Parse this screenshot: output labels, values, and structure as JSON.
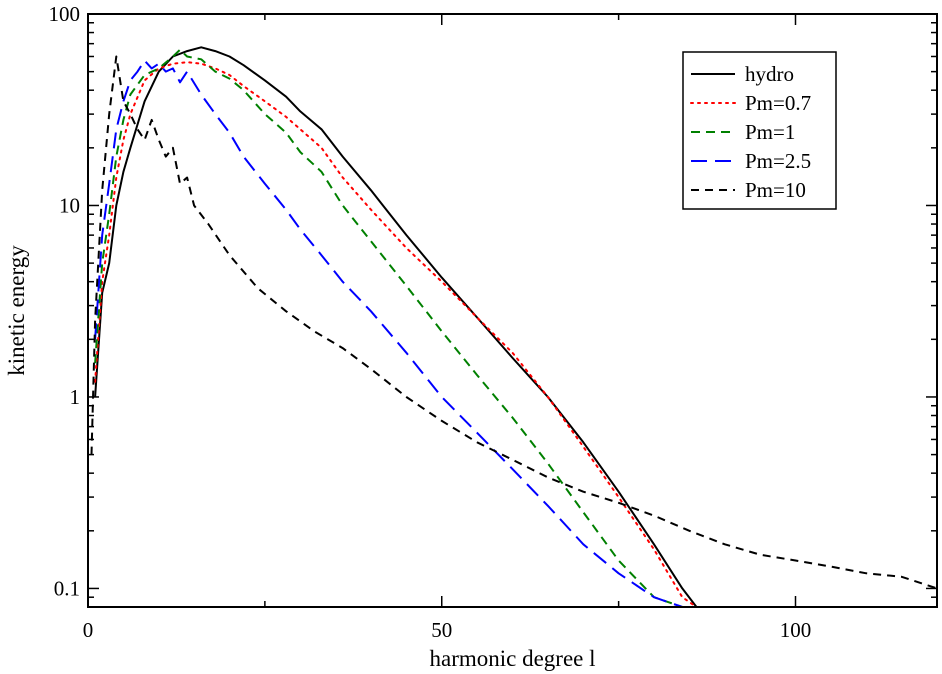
{
  "chart_data": {
    "type": "line",
    "title": "",
    "xlabel": "harmonic degree l",
    "ylabel": "kinetic energy",
    "xlim": [
      0,
      120
    ],
    "ylim": [
      0.08,
      100
    ],
    "yscale": "log",
    "xticks": [
      0,
      50,
      100
    ],
    "xtick_labels": [
      "0",
      "50",
      "100"
    ],
    "yticks": [
      0.1,
      1,
      10,
      100
    ],
    "ytick_labels": [
      "0.1",
      "1",
      "10",
      "100"
    ],
    "grid": false,
    "legend_position": "top-right",
    "series": [
      {
        "name": "hydro",
        "color": "#000000",
        "dash": "solid",
        "x": [
          1,
          2,
          3,
          4,
          5,
          6,
          8,
          10,
          12,
          14,
          16,
          18,
          20,
          22,
          25,
          28,
          30,
          33,
          36,
          40,
          45,
          50,
          55,
          60,
          65,
          70,
          75,
          80,
          84,
          86
        ],
        "y": [
          1.0,
          3.5,
          5.0,
          10.0,
          15.0,
          20.0,
          35.0,
          50.0,
          60.0,
          64.0,
          67.0,
          64.0,
          60.0,
          54.0,
          45.0,
          37.0,
          31.0,
          25.0,
          18.0,
          12.0,
          7.0,
          4.2,
          2.6,
          1.6,
          1.0,
          0.58,
          0.32,
          0.17,
          0.1,
          0.08
        ]
      },
      {
        "name": "Pm=0.7",
        "color": "#ff0000",
        "dash": "dotted",
        "x": [
          1,
          2,
          3,
          4,
          5,
          6,
          8,
          10,
          12,
          14,
          16,
          18,
          20,
          22,
          25,
          28,
          30,
          33,
          36,
          40,
          45,
          50,
          55,
          60,
          65,
          70,
          75,
          80,
          84,
          86
        ],
        "y": [
          1.2,
          4.0,
          7.0,
          14.0,
          22.0,
          30.0,
          45.0,
          52.0,
          55.0,
          56.0,
          55.0,
          52.0,
          48.0,
          42.0,
          35.0,
          29.0,
          25.0,
          20.0,
          14.0,
          9.5,
          6.0,
          4.0,
          2.6,
          1.7,
          1.0,
          0.55,
          0.3,
          0.16,
          0.09,
          0.08
        ]
      },
      {
        "name": "Pm=1",
        "color": "#008000",
        "dash": "dashed",
        "x": [
          1,
          2,
          3,
          4,
          5,
          6,
          8,
          10,
          12,
          13,
          14,
          16,
          18,
          20,
          22,
          25,
          28,
          30,
          33,
          36,
          40,
          45,
          50,
          55,
          60,
          65,
          70,
          75,
          80,
          84
        ],
        "y": [
          1.5,
          5.0,
          9.0,
          18.0,
          28.0,
          38.0,
          48.0,
          52.0,
          60.0,
          65.0,
          60.0,
          58.0,
          50.0,
          46.0,
          40.0,
          30.0,
          24.0,
          19.0,
          15.0,
          10.0,
          6.5,
          3.8,
          2.2,
          1.3,
          0.78,
          0.45,
          0.25,
          0.14,
          0.09,
          0.08
        ]
      },
      {
        "name": "Pm=2.5",
        "color": "#0000ff",
        "dash": "longdash",
        "x": [
          1,
          2,
          3,
          4,
          5,
          6,
          7,
          8,
          9,
          10,
          11,
          12,
          13,
          14,
          16,
          18,
          20,
          22,
          25,
          28,
          30,
          33,
          36,
          40,
          45,
          50,
          55,
          60,
          65,
          70,
          75,
          80,
          84,
          87,
          88
        ],
        "y": [
          2.0,
          7.0,
          13.0,
          25.0,
          35.0,
          45.0,
          50.0,
          57.0,
          52.0,
          55.0,
          50.0,
          52.0,
          44.0,
          50.0,
          38.0,
          30.0,
          24.0,
          18.0,
          13.0,
          9.5,
          7.5,
          5.5,
          4.0,
          2.8,
          1.7,
          1.0,
          0.65,
          0.42,
          0.27,
          0.17,
          0.12,
          0.09,
          0.08,
          0.08,
          0.08
        ]
      },
      {
        "name": "Pm=10",
        "color": "#000000",
        "dash": "shortdash",
        "x": [
          0.5,
          1,
          2,
          3,
          4,
          5,
          6,
          7,
          8,
          9,
          10,
          11,
          12,
          13,
          14,
          15,
          17,
          20,
          24,
          28,
          32,
          36,
          40,
          45,
          50,
          55,
          60,
          65,
          70,
          75,
          80,
          85,
          90,
          95,
          100,
          105,
          110,
          115,
          120
        ],
        "y": [
          0.5,
          2.5,
          12.0,
          30.0,
          60.0,
          35.0,
          30.0,
          25.0,
          22.0,
          28.0,
          22.0,
          18.0,
          20.0,
          13.0,
          14.0,
          10.0,
          8.0,
          5.5,
          3.7,
          2.8,
          2.2,
          1.8,
          1.4,
          1.0,
          0.75,
          0.58,
          0.47,
          0.38,
          0.32,
          0.28,
          0.24,
          0.2,
          0.17,
          0.15,
          0.14,
          0.13,
          0.12,
          0.115,
          0.1
        ]
      }
    ]
  }
}
